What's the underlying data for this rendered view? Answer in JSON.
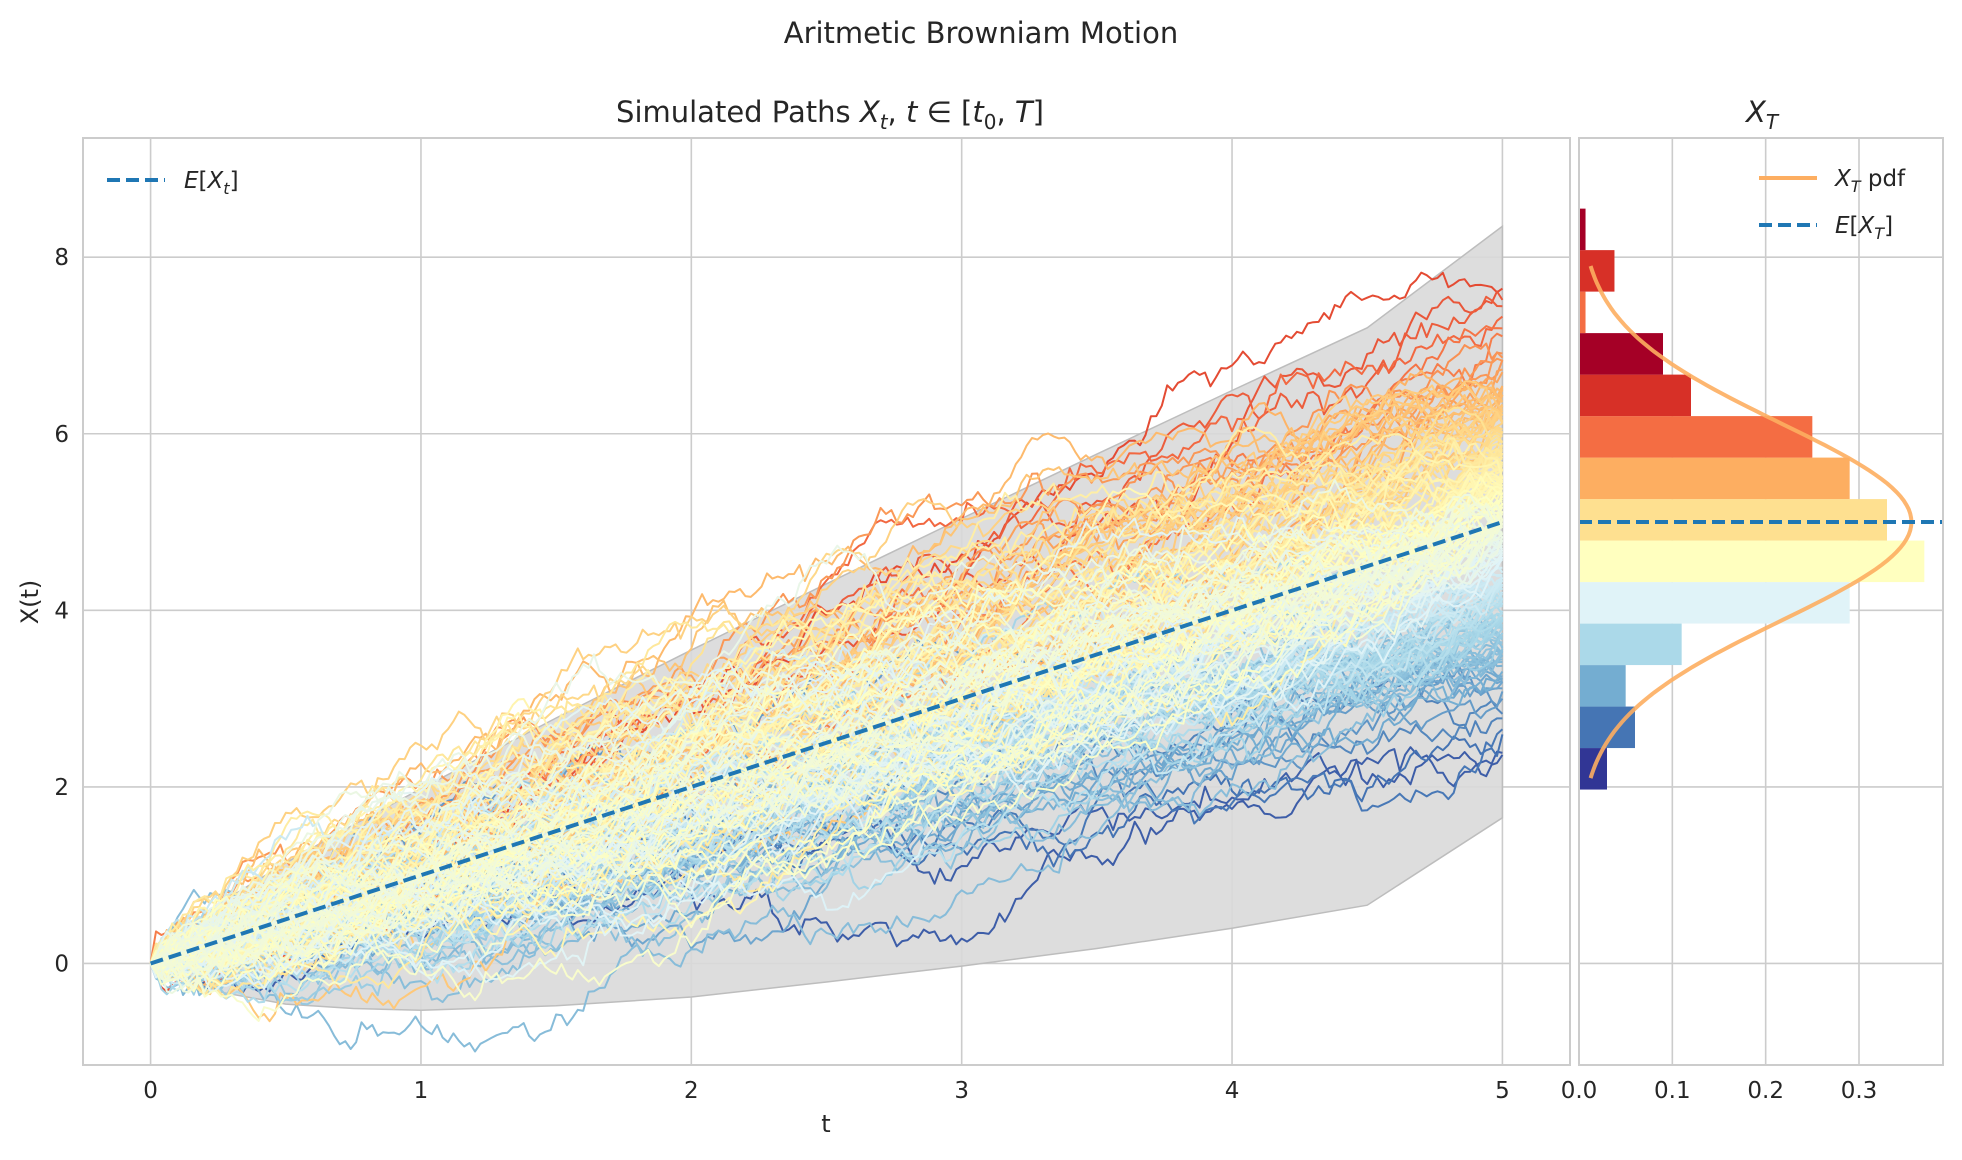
{
  "chart_data": [
    {
      "type": "line",
      "suptitle": "Aritmetic Browniam Motion",
      "title": "Simulated Paths X_t, t ∈ [t_0, T]",
      "xlabel": "t",
      "ylabel": "X(t)",
      "xlim": [
        -0.25,
        5.25
      ],
      "ylim": [
        -1.15,
        9.35
      ],
      "xticks": [
        "0",
        "1",
        "2",
        "3",
        "4",
        "5"
      ],
      "yticks": [
        "0",
        "2",
        "4",
        "6",
        "8"
      ],
      "grid": true,
      "legend": {
        "position": "top-left",
        "entries": [
          "E[X_t]"
        ]
      },
      "mean_line": {
        "name": "E[X_t]",
        "x": [
          0,
          5
        ],
        "y": [
          0,
          5
        ],
        "color": "#1f77b4",
        "style": "dashed"
      },
      "confidence_band": {
        "color": "#d9d9d9",
        "x": [
          0,
          0.1,
          0.25,
          0.5,
          0.75,
          1,
          1.5,
          2,
          2.5,
          3,
          3.5,
          4,
          4.5,
          5
        ],
        "upper": [
          0,
          0.33,
          0.67,
          1.14,
          1.57,
          1.98,
          2.78,
          3.55,
          4.3,
          5.04,
          5.77,
          6.49,
          7.2,
          8.35
        ],
        "lower": [
          0,
          -0.13,
          -0.32,
          -0.46,
          -0.51,
          -0.53,
          -0.48,
          -0.38,
          -0.21,
          -0.03,
          0.17,
          0.4,
          0.66,
          1.65
        ]
      },
      "paths": {
        "count": 200,
        "t_range": [
          0,
          5
        ],
        "colormap": "RdYlBu",
        "terminal_range": [
          1.95,
          8.6
        ]
      }
    },
    {
      "type": "bar",
      "orientation": "horizontal",
      "title": "X_T",
      "xlim": [
        0,
        0.39
      ],
      "xticks": [
        "0.0",
        "0.1",
        "0.2",
        "0.3"
      ],
      "shared_y": true,
      "grid": true,
      "legend": {
        "position": "top-right",
        "entries": [
          "X_T pdf",
          "E[X_T]"
        ]
      },
      "histogram": {
        "bin_edges": [
          1.97,
          2.44,
          2.91,
          3.38,
          3.85,
          4.32,
          4.79,
          5.26,
          5.73,
          6.2,
          6.67,
          7.14,
          7.61,
          8.08,
          8.55
        ],
        "density": [
          0.03,
          0.06,
          0.05,
          0.11,
          0.29,
          0.37,
          0.33,
          0.29,
          0.25,
          0.12,
          0.09,
          0.007,
          0.038,
          0.007
        ],
        "colors": [
          "#313695",
          "#4575b4",
          "#74add1",
          "#abd9e9",
          "#e0f3f8",
          "#ffffbf",
          "#fee090",
          "#fdae61",
          "#f46d43",
          "#d73027",
          "#a50026",
          "#f46d43",
          "#d73027",
          "#a50026"
        ]
      },
      "pdf_line": {
        "name": "X_T pdf",
        "mean": 5.0,
        "std": 1.12,
        "y_range": [
          2.1,
          7.9
        ],
        "color": "#fdae61"
      },
      "mean_line": {
        "name": "E[X_T]",
        "y": 5.0,
        "color": "#1f77b4",
        "style": "dashed"
      }
    }
  ]
}
